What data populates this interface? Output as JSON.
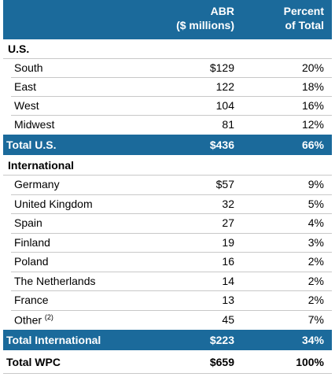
{
  "header": {
    "abr": [
      "ABR",
      "($ millions)"
    ],
    "percent": [
      "Percent",
      "of Total"
    ]
  },
  "sections": [
    {
      "title": "U.S.",
      "rows": [
        {
          "label": "South",
          "abr": "$129",
          "percent": "20%"
        },
        {
          "label": "East",
          "abr": "122",
          "percent": "18%"
        },
        {
          "label": "West",
          "abr": "104",
          "percent": "16%"
        },
        {
          "label": "Midwest",
          "abr": "81",
          "percent": "12%"
        }
      ],
      "total": {
        "label": "Total U.S.",
        "abr": "$436",
        "percent": "66%"
      }
    },
    {
      "title": "International",
      "rows": [
        {
          "label": "Germany",
          "abr": "$57",
          "percent": "9%"
        },
        {
          "label": "United Kingdom",
          "abr": "32",
          "percent": "5%"
        },
        {
          "label": "Spain",
          "abr": "27",
          "percent": "4%"
        },
        {
          "label": "Finland",
          "abr": "19",
          "percent": "3%"
        },
        {
          "label": "Poland",
          "abr": "16",
          "percent": "2%"
        },
        {
          "label": "The Netherlands",
          "abr": "14",
          "percent": "2%"
        },
        {
          "label": "France",
          "abr": "13",
          "percent": "2%"
        },
        {
          "label": "Other",
          "note": "(2)",
          "abr": "45",
          "percent": "7%"
        }
      ],
      "total": {
        "label": "Total International",
        "abr": "$223",
        "percent": "34%"
      }
    }
  ],
  "grand_total": {
    "label": "Total WPC",
    "abr": "$659",
    "percent": "100%"
  }
}
